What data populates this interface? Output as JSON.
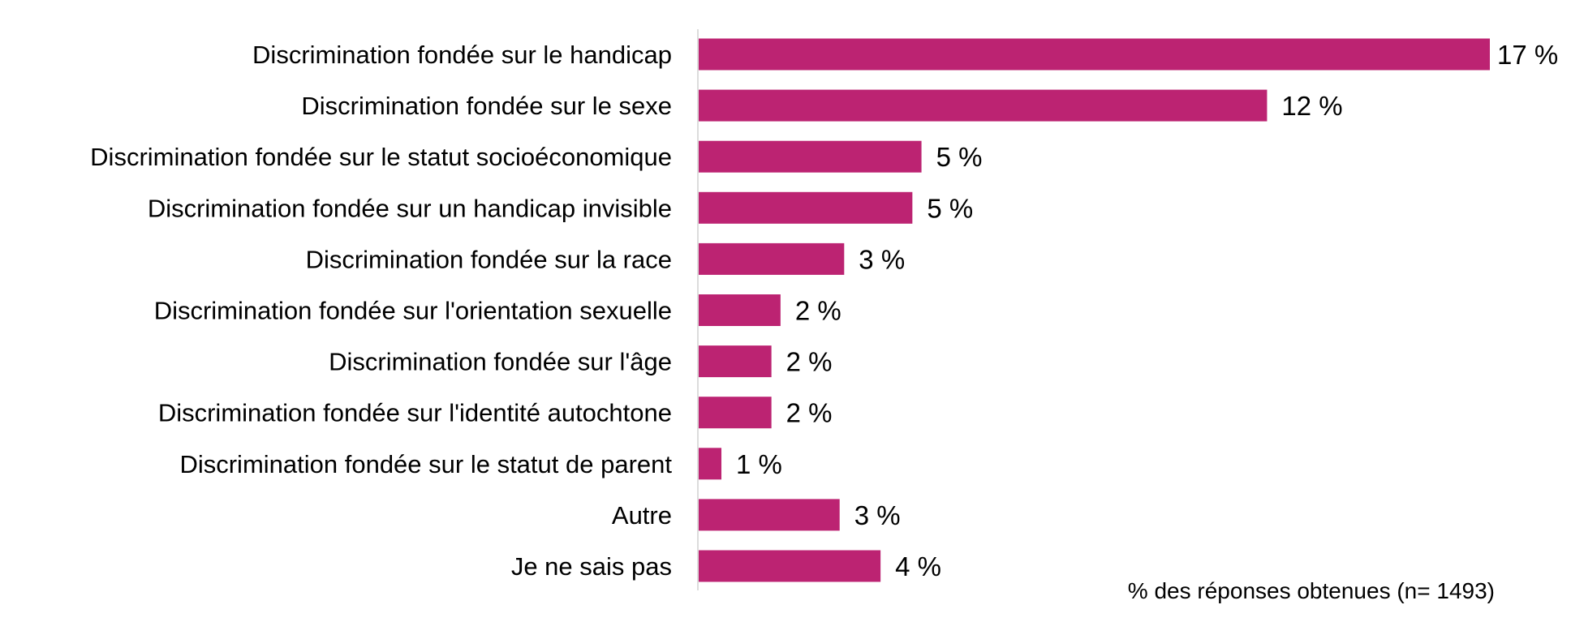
{
  "chart_data": {
    "type": "bar",
    "orientation": "horizontal",
    "categories": [
      "Discrimination fondée sur le handicap",
      "Discrimination fondée sur le sexe",
      "Discrimination fondée sur le statut socioéconomique",
      "Discrimination fondée sur un handicap invisible",
      "Discrimination fondée sur la race",
      "Discrimination fondée sur l'orientation sexuelle",
      "Discrimination fondée sur l'âge",
      "Discrimination fondée sur l'identité autochtone",
      "Discrimination fondée sur le statut de parent",
      "Autre",
      "Je ne sais pas"
    ],
    "values": [
      17.4,
      12.5,
      4.9,
      4.7,
      3.2,
      1.8,
      1.6,
      1.6,
      0.5,
      3.1,
      4.0
    ],
    "value_labels": [
      "17 %",
      "12 %",
      "5 %",
      "5 %",
      "3 %",
      "2 %",
      "2 %",
      "2 %",
      "1 %",
      "3 %",
      "4 %"
    ],
    "xlim": [
      0,
      17.4
    ],
    "bar_color": "#BC2372",
    "axis_color": "#D0D0D0",
    "grid": false,
    "legend": "none",
    "note": "% des réponses obtenues (n= 1493)"
  }
}
